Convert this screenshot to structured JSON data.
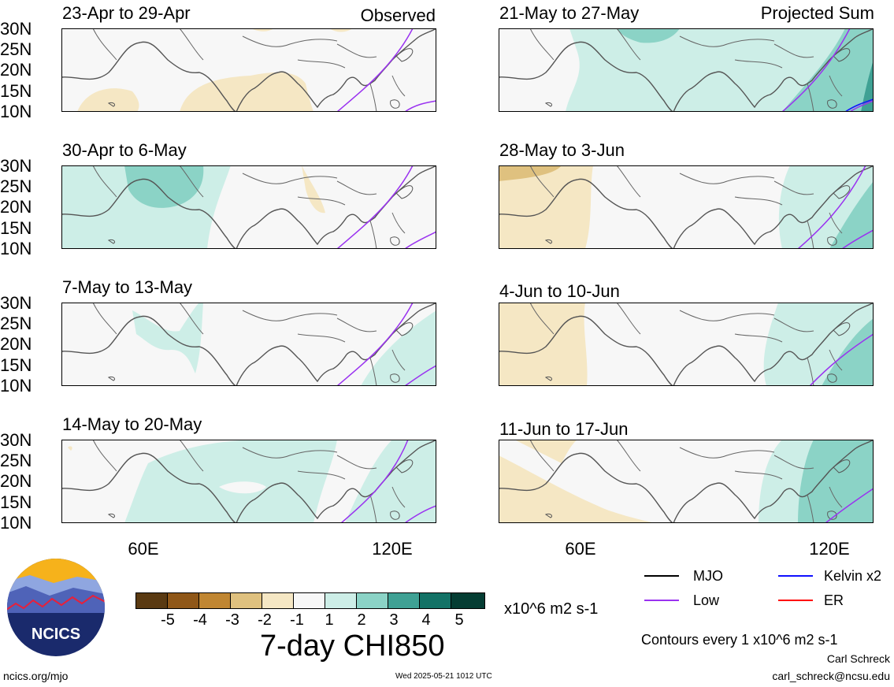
{
  "status": {
    "observed": "Observed",
    "projected": "Projected Sum"
  },
  "panels": [
    {
      "title": "23-Apr to 29-Apr",
      "column": "left"
    },
    {
      "title": "30-Apr to 6-May",
      "column": "left"
    },
    {
      "title": "7-May to 13-May",
      "column": "left"
    },
    {
      "title": "14-May to 20-May",
      "column": "left"
    },
    {
      "title": "21-May to 27-May",
      "column": "right"
    },
    {
      "title": "28-May to 3-Jun",
      "column": "right"
    },
    {
      "title": "4-Jun to 10-Jun",
      "column": "right"
    },
    {
      "title": "11-Jun to 17-Jun",
      "column": "right"
    }
  ],
  "axes": {
    "y_labels": [
      "30N",
      "25N",
      "20N",
      "15N",
      "10N"
    ],
    "x_labels": [
      "60E",
      "120E"
    ]
  },
  "colorbar": {
    "colors": [
      "#5a3a12",
      "#8f5718",
      "#c08632",
      "#dfc17f",
      "#f5e7c4",
      "#f7f7f7",
      "#cdeee7",
      "#8bd3c6",
      "#3fa194",
      "#137266",
      "#053d33"
    ],
    "ticks": [
      "-5",
      "-4",
      "-3",
      "-2",
      "-1",
      "1",
      "2",
      "3",
      "4",
      "5"
    ],
    "units": "x10^6 m2 s-1",
    "title": "7-day CHI850"
  },
  "legend": {
    "items": [
      {
        "label": "MJO",
        "color": "#000000"
      },
      {
        "label": "Kelvin x2",
        "color": "#1010ff"
      },
      {
        "label": "Low",
        "color": "#9a32f0"
      },
      {
        "label": "ER",
        "color": "#ff0000"
      }
    ],
    "contours_note": "Contours every 1 x10^6 m2 s-1"
  },
  "footer": {
    "logo_text": "NCICS",
    "url": "ncics.org/mjo",
    "timestamp": "Wed 2025-05-21 1012 UTC",
    "author": "Carl Schreck",
    "email": "carl_schreck@ncsu.edu"
  }
}
